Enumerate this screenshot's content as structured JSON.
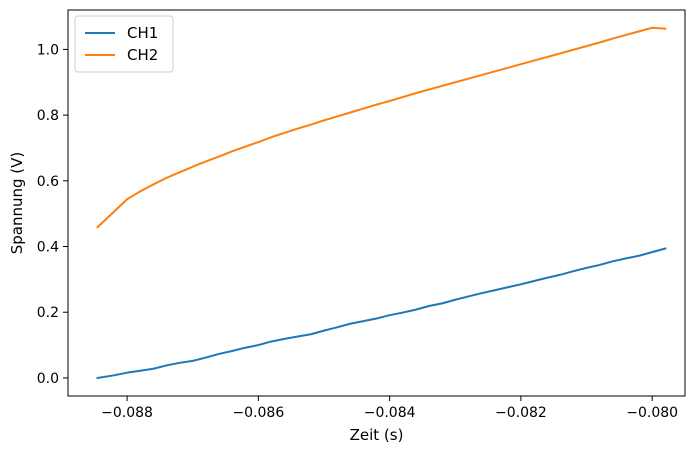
{
  "chart_data": {
    "type": "line",
    "title": "",
    "xlabel": "Zeit (s)",
    "ylabel": "Spannung (V)",
    "xlim": [
      -0.0889,
      -0.0795
    ],
    "ylim": [
      -0.055,
      1.12
    ],
    "grid": false,
    "legend_position": "top-left",
    "x_ticks": [
      -0.088,
      -0.086,
      -0.084,
      -0.082,
      -0.08
    ],
    "x_tick_labels": [
      "−0.088",
      "−0.086",
      "−0.084",
      "−0.082",
      "−0.080"
    ],
    "y_ticks": [
      0.0,
      0.2,
      0.4,
      0.6,
      0.8,
      1.0
    ],
    "y_tick_labels": [
      "0.0",
      "0.2",
      "0.4",
      "0.6",
      "0.8",
      "1.0"
    ],
    "series": [
      {
        "name": "CH1",
        "color": "#1f77b4",
        "x": [
          -0.08845,
          -0.0882,
          -0.088,
          -0.0878,
          -0.0876,
          -0.0874,
          -0.0872,
          -0.087,
          -0.0868,
          -0.0866,
          -0.0864,
          -0.0862,
          -0.086,
          -0.0858,
          -0.0856,
          -0.0854,
          -0.0852,
          -0.085,
          -0.0848,
          -0.0846,
          -0.0844,
          -0.0842,
          -0.084,
          -0.0838,
          -0.0836,
          -0.0834,
          -0.0832,
          -0.083,
          -0.0828,
          -0.0826,
          -0.0824,
          -0.0822,
          -0.082,
          -0.0818,
          -0.0816,
          -0.0814,
          -0.0812,
          -0.081,
          -0.0808,
          -0.0806,
          -0.0804,
          -0.0802,
          -0.08,
          -0.0798
        ],
        "y": [
          0.0,
          0.008,
          0.016,
          0.022,
          0.028,
          0.038,
          0.046,
          0.052,
          0.062,
          0.073,
          0.082,
          0.092,
          0.1,
          0.111,
          0.119,
          0.126,
          0.133,
          0.144,
          0.154,
          0.165,
          0.173,
          0.181,
          0.191,
          0.199,
          0.208,
          0.219,
          0.227,
          0.238,
          0.248,
          0.258,
          0.267,
          0.276,
          0.285,
          0.295,
          0.305,
          0.314,
          0.325,
          0.335,
          0.344,
          0.355,
          0.364,
          0.372,
          0.383,
          0.394
        ]
      },
      {
        "name": "CH2",
        "color": "#ff7f0e",
        "x": [
          -0.08845,
          -0.0882,
          -0.088,
          -0.0878,
          -0.0876,
          -0.0874,
          -0.0872,
          -0.087,
          -0.0868,
          -0.0866,
          -0.0864,
          -0.0862,
          -0.086,
          -0.0858,
          -0.0856,
          -0.0854,
          -0.0852,
          -0.085,
          -0.0848,
          -0.0846,
          -0.0844,
          -0.0842,
          -0.084,
          -0.0838,
          -0.0836,
          -0.0834,
          -0.0832,
          -0.083,
          -0.0828,
          -0.0826,
          -0.0824,
          -0.0822,
          -0.082,
          -0.0818,
          -0.0816,
          -0.0814,
          -0.0812,
          -0.081,
          -0.0808,
          -0.0806,
          -0.0804,
          -0.0802,
          -0.08,
          -0.0798
        ],
        "y": [
          0.459,
          0.506,
          0.544,
          0.568,
          0.589,
          0.609,
          0.626,
          0.643,
          0.659,
          0.674,
          0.69,
          0.704,
          0.718,
          0.733,
          0.746,
          0.759,
          0.771,
          0.784,
          0.796,
          0.808,
          0.82,
          0.832,
          0.843,
          0.855,
          0.867,
          0.878,
          0.889,
          0.9,
          0.911,
          0.922,
          0.933,
          0.944,
          0.955,
          0.966,
          0.977,
          0.988,
          0.999,
          1.01,
          1.021,
          1.033,
          1.044,
          1.055,
          1.066,
          1.063
        ]
      }
    ]
  }
}
